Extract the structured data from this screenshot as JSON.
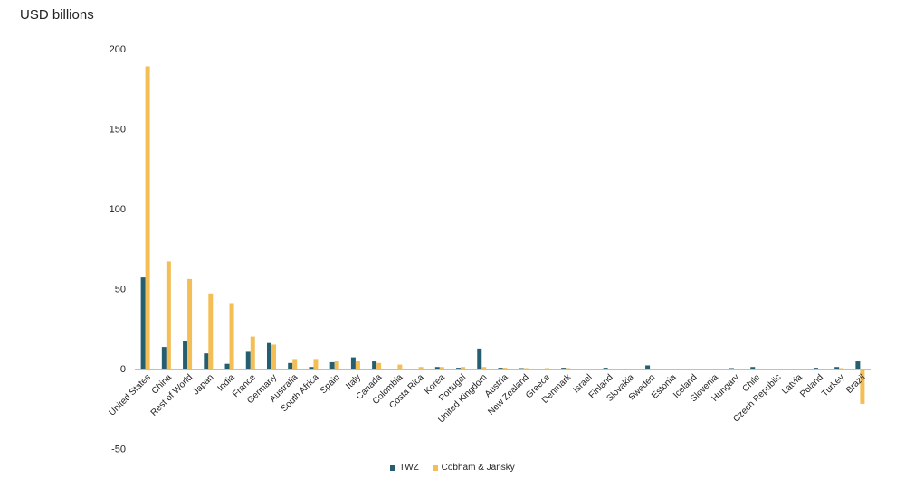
{
  "chart_data": {
    "type": "bar",
    "ylabel": "USD billions",
    "ylim": [
      -50,
      200
    ],
    "yticks": [
      200,
      150,
      100,
      50,
      0,
      -50
    ],
    "grid": false,
    "legend_position": "bottom",
    "colors": {
      "TWZ": "#245e70",
      "Cobham & Jansky": "#f4be57"
    },
    "categories": [
      "United States",
      "China",
      "Rest of World",
      "Japan",
      "India",
      "France",
      "Germany",
      "Australia",
      "South Africa",
      "Spain",
      "Italy",
      "Canada",
      "Colombia",
      "Costa Rica",
      "Korea",
      "Portugal",
      "United Kingdom",
      "Austria",
      "New Zealand",
      "Greece",
      "Denmark",
      "Israel",
      "Finland",
      "Slovakia",
      "Sweden",
      "Estonia",
      "Iceland",
      "Slovenia",
      "Hungary",
      "Chile",
      "Czech Republic",
      "Latvia",
      "Poland",
      "Turkey",
      "Brazil"
    ],
    "series": [
      {
        "name": "TWZ",
        "values": [
          57,
          13.5,
          17.5,
          9.5,
          3,
          10.5,
          16,
          3.5,
          1,
          4,
          7,
          4.5,
          0,
          0,
          1,
          0.5,
          12.5,
          0.5,
          0.3,
          0,
          0.5,
          0,
          0.5,
          0,
          2,
          0,
          0,
          0,
          0.3,
          1,
          0,
          0,
          0.5,
          1,
          4.5
        ]
      },
      {
        "name": "Cobham & Jansky",
        "values": [
          189,
          67,
          56,
          47,
          41,
          20,
          15,
          6,
          6,
          5,
          5,
          3.5,
          2.5,
          1,
          1,
          1,
          1,
          0.5,
          0.3,
          0.3,
          0.3,
          0,
          0,
          0,
          0,
          0,
          0,
          0,
          0,
          0,
          0,
          0,
          0,
          0.3,
          -22
        ]
      }
    ]
  }
}
